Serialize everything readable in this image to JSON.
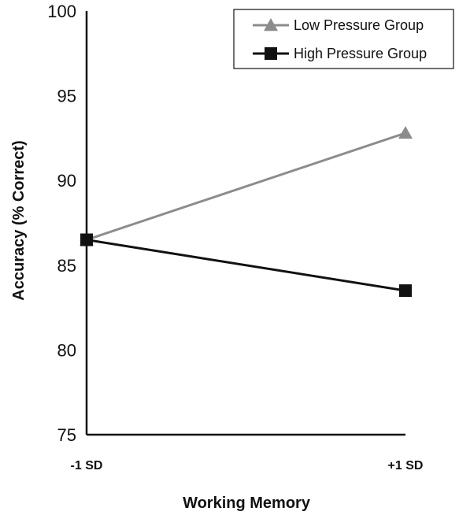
{
  "chart_data": {
    "type": "line",
    "categories": [
      "-1 SD",
      "+1 SD"
    ],
    "series": [
      {
        "name": "Low Pressure Group",
        "values": [
          86.5,
          92.8
        ],
        "color": "#8c8c8c",
        "marker": "triangle"
      },
      {
        "name": "High Pressure Group",
        "values": [
          86.5,
          83.5
        ],
        "color": "#111111",
        "marker": "square"
      }
    ],
    "xlabel": "Working Memory",
    "ylabel": "Accuracy (% Correct)",
    "ylim": [
      75,
      100
    ],
    "yticks": [
      "75",
      "80",
      "85",
      "90",
      "95",
      "100"
    ],
    "grid": false,
    "legend_position": "top-right"
  }
}
